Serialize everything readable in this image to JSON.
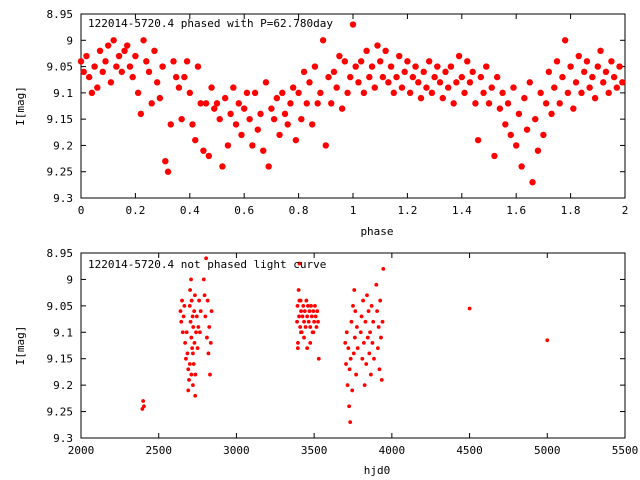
{
  "chart_data": [
    {
      "type": "scatter",
      "title": "122014-5720.4 phased with P=62.780day",
      "xlabel": "phase",
      "ylabel": "I[mag]",
      "xlim": [
        0,
        2
      ],
      "ylim": [
        9.3,
        8.95
      ],
      "y_inverted": true,
      "grid": false,
      "legend": "none",
      "marker": "filled-circle-large",
      "color": "#ff0000",
      "x_ticks": [
        "0",
        "0.2",
        "0.4",
        "0.6",
        "0.8",
        "1",
        "1.2",
        "1.4",
        "1.6",
        "1.8",
        "2"
      ],
      "x_tick_values": [
        0,
        0.2,
        0.4,
        0.6,
        0.8,
        1,
        1.2,
        1.4,
        1.6,
        1.8,
        2
      ],
      "y_ticks": [
        "8.95",
        "9",
        "9.05",
        "9.1",
        "9.15",
        "9.2",
        "9.25",
        "9.3"
      ],
      "y_tick_values": [
        8.95,
        9.0,
        9.05,
        9.1,
        9.15,
        9.2,
        9.25,
        9.3
      ],
      "points": [
        [
          0.0,
          9.04
        ],
        [
          0.01,
          9.06
        ],
        [
          0.02,
          9.03
        ],
        [
          0.03,
          9.07
        ],
        [
          0.04,
          9.1
        ],
        [
          0.05,
          9.05
        ],
        [
          0.06,
          9.09
        ],
        [
          0.07,
          9.02
        ],
        [
          0.08,
          9.06
        ],
        [
          0.09,
          9.04
        ],
        [
          0.1,
          9.01
        ],
        [
          0.11,
          9.08
        ],
        [
          0.12,
          9.0
        ],
        [
          0.13,
          9.05
        ],
        [
          0.14,
          9.03
        ],
        [
          0.15,
          9.06
        ],
        [
          0.16,
          9.02
        ],
        [
          0.17,
          9.01
        ],
        [
          0.18,
          9.05
        ],
        [
          0.19,
          9.07
        ],
        [
          0.2,
          9.03
        ],
        [
          0.21,
          9.1
        ],
        [
          0.22,
          9.14
        ],
        [
          0.23,
          9.0
        ],
        [
          0.24,
          9.04
        ],
        [
          0.25,
          9.06
        ],
        [
          0.26,
          9.12
        ],
        [
          0.27,
          9.02
        ],
        [
          0.28,
          9.08
        ],
        [
          0.29,
          9.11
        ],
        [
          0.3,
          9.05
        ],
        [
          0.31,
          9.23
        ],
        [
          0.32,
          9.25
        ],
        [
          0.33,
          9.16
        ],
        [
          0.34,
          9.04
        ],
        [
          0.35,
          9.07
        ],
        [
          0.36,
          9.09
        ],
        [
          0.37,
          9.15
        ],
        [
          0.38,
          9.07
        ],
        [
          0.39,
          9.04
        ],
        [
          0.4,
          9.1
        ],
        [
          0.41,
          9.16
        ],
        [
          0.42,
          9.19
        ],
        [
          0.43,
          9.05
        ],
        [
          0.44,
          9.12
        ],
        [
          0.45,
          9.21
        ],
        [
          0.46,
          9.12
        ],
        [
          0.47,
          9.22
        ],
        [
          0.48,
          9.09
        ],
        [
          0.49,
          9.13
        ],
        [
          0.5,
          9.12
        ],
        [
          0.51,
          9.15
        ],
        [
          0.52,
          9.24
        ],
        [
          0.53,
          9.11
        ],
        [
          0.54,
          9.2
        ],
        [
          0.55,
          9.14
        ],
        [
          0.56,
          9.09
        ],
        [
          0.57,
          9.16
        ],
        [
          0.58,
          9.12
        ],
        [
          0.59,
          9.18
        ],
        [
          0.6,
          9.13
        ],
        [
          0.61,
          9.1
        ],
        [
          0.62,
          9.15
        ],
        [
          0.63,
          9.2
        ],
        [
          0.64,
          9.1
        ],
        [
          0.65,
          9.17
        ],
        [
          0.66,
          9.14
        ],
        [
          0.67,
          9.21
        ],
        [
          0.68,
          9.08
        ],
        [
          0.69,
          9.24
        ],
        [
          0.7,
          9.13
        ],
        [
          0.71,
          9.15
        ],
        [
          0.72,
          9.11
        ],
        [
          0.73,
          9.18
        ],
        [
          0.74,
          9.1
        ],
        [
          0.75,
          9.14
        ],
        [
          0.76,
          9.16
        ],
        [
          0.77,
          9.12
        ],
        [
          0.78,
          9.09
        ],
        [
          0.79,
          9.19
        ],
        [
          0.8,
          9.1
        ],
        [
          0.81,
          9.15
        ],
        [
          0.82,
          9.06
        ],
        [
          0.83,
          9.12
        ],
        [
          0.84,
          9.08
        ],
        [
          0.85,
          9.16
        ],
        [
          0.86,
          9.05
        ],
        [
          0.87,
          9.12
        ],
        [
          0.88,
          9.1
        ],
        [
          0.89,
          9.0
        ],
        [
          0.9,
          9.2
        ],
        [
          0.91,
          9.07
        ],
        [
          0.92,
          9.12
        ],
        [
          0.93,
          9.06
        ],
        [
          0.94,
          9.09
        ],
        [
          0.95,
          9.03
        ],
        [
          0.96,
          9.13
        ],
        [
          0.97,
          9.04
        ],
        [
          0.98,
          9.1
        ],
        [
          0.99,
          9.07
        ],
        [
          1.0,
          8.97
        ],
        [
          1.01,
          9.05
        ],
        [
          1.02,
          9.08
        ],
        [
          1.03,
          9.04
        ],
        [
          1.04,
          9.1
        ],
        [
          1.05,
          9.02
        ],
        [
          1.06,
          9.07
        ],
        [
          1.07,
          9.05
        ],
        [
          1.08,
          9.09
        ],
        [
          1.09,
          9.01
        ],
        [
          1.1,
          9.04
        ],
        [
          1.11,
          9.07
        ],
        [
          1.12,
          9.02
        ],
        [
          1.13,
          9.08
        ],
        [
          1.14,
          9.05
        ],
        [
          1.15,
          9.1
        ],
        [
          1.16,
          9.07
        ],
        [
          1.17,
          9.03
        ],
        [
          1.18,
          9.09
        ],
        [
          1.19,
          9.06
        ],
        [
          1.2,
          9.04
        ],
        [
          1.21,
          9.1
        ],
        [
          1.22,
          9.07
        ],
        [
          1.23,
          9.05
        ],
        [
          1.24,
          9.08
        ],
        [
          1.25,
          9.11
        ],
        [
          1.26,
          9.06
        ],
        [
          1.27,
          9.09
        ],
        [
          1.28,
          9.04
        ],
        [
          1.29,
          9.1
        ],
        [
          1.3,
          9.07
        ],
        [
          1.31,
          9.05
        ],
        [
          1.32,
          9.08
        ],
        [
          1.33,
          9.11
        ],
        [
          1.34,
          9.06
        ],
        [
          1.35,
          9.09
        ],
        [
          1.36,
          9.05
        ],
        [
          1.37,
          9.12
        ],
        [
          1.38,
          9.08
        ],
        [
          1.39,
          9.03
        ],
        [
          1.4,
          9.07
        ],
        [
          1.41,
          9.1
        ],
        [
          1.42,
          9.04
        ],
        [
          1.43,
          9.08
        ],
        [
          1.44,
          9.06
        ],
        [
          1.45,
          9.12
        ],
        [
          1.46,
          9.19
        ],
        [
          1.47,
          9.07
        ],
        [
          1.48,
          9.1
        ],
        [
          1.49,
          9.05
        ],
        [
          1.5,
          9.12
        ],
        [
          1.51,
          9.09
        ],
        [
          1.52,
          9.22
        ],
        [
          1.53,
          9.07
        ],
        [
          1.54,
          9.13
        ],
        [
          1.55,
          9.1
        ],
        [
          1.56,
          9.16
        ],
        [
          1.57,
          9.12
        ],
        [
          1.58,
          9.18
        ],
        [
          1.59,
          9.09
        ],
        [
          1.6,
          9.2
        ],
        [
          1.61,
          9.14
        ],
        [
          1.62,
          9.24
        ],
        [
          1.63,
          9.11
        ],
        [
          1.64,
          9.17
        ],
        [
          1.65,
          9.08
        ],
        [
          1.66,
          9.27
        ],
        [
          1.67,
          9.15
        ],
        [
          1.68,
          9.21
        ],
        [
          1.69,
          9.1
        ],
        [
          1.7,
          9.18
        ],
        [
          1.71,
          9.12
        ],
        [
          1.72,
          9.06
        ],
        [
          1.73,
          9.14
        ],
        [
          1.74,
          9.09
        ],
        [
          1.75,
          9.04
        ],
        [
          1.76,
          9.12
        ],
        [
          1.77,
          9.07
        ],
        [
          1.78,
          9.0
        ],
        [
          1.79,
          9.1
        ],
        [
          1.8,
          9.05
        ],
        [
          1.81,
          9.13
        ],
        [
          1.82,
          9.08
        ],
        [
          1.83,
          9.03
        ],
        [
          1.84,
          9.1
        ],
        [
          1.85,
          9.06
        ],
        [
          1.86,
          9.04
        ],
        [
          1.87,
          9.09
        ],
        [
          1.88,
          9.07
        ],
        [
          1.89,
          9.11
        ],
        [
          1.9,
          9.05
        ],
        [
          1.91,
          9.02
        ],
        [
          1.92,
          9.08
        ],
        [
          1.93,
          9.06
        ],
        [
          1.94,
          9.1
        ],
        [
          1.95,
          9.04
        ],
        [
          1.96,
          9.07
        ],
        [
          1.97,
          9.09
        ],
        [
          1.98,
          9.05
        ],
        [
          1.99,
          9.08
        ]
      ]
    },
    {
      "type": "scatter",
      "title": "122014-5720.4 not phased light curve",
      "xlabel": "hjd0",
      "ylabel": "I[mag]",
      "xlim": [
        2000,
        5500
      ],
      "ylim": [
        9.3,
        8.95
      ],
      "y_inverted": true,
      "grid": false,
      "legend": "none",
      "marker": "small-dot",
      "color": "#ff0000",
      "x_ticks": [
        "2000",
        "2500",
        "3000",
        "3500",
        "4000",
        "4500",
        "5000",
        "5500"
      ],
      "x_tick_values": [
        2000,
        2500,
        3000,
        3500,
        4000,
        4500,
        5000,
        5500
      ],
      "y_ticks": [
        "8.95",
        "9",
        "9.05",
        "9.1",
        "9.15",
        "9.2",
        "9.25",
        "9.3"
      ],
      "y_tick_values": [
        8.95,
        9.0,
        9.05,
        9.1,
        9.15,
        9.2,
        9.25,
        9.3
      ],
      "points": [
        [
          2395,
          9.245
        ],
        [
          2400,
          9.23
        ],
        [
          2405,
          9.24
        ],
        [
          2640,
          9.06
        ],
        [
          2645,
          9.08
        ],
        [
          2650,
          9.04
        ],
        [
          2655,
          9.1
        ],
        [
          2660,
          9.07
        ],
        [
          2665,
          9.05
        ],
        [
          2670,
          9.12
        ],
        [
          2675,
          9.15
        ],
        [
          2680,
          9.1
        ],
        [
          2685,
          9.14
        ],
        [
          2690,
          9.17
        ],
        [
          2695,
          9.19
        ],
        [
          2700,
          9.05
        ],
        [
          2702,
          9.02
        ],
        [
          2705,
          9.08
        ],
        [
          2708,
          9.0
        ],
        [
          2710,
          9.11
        ],
        [
          2712,
          9.04
        ],
        [
          2715,
          9.13
        ],
        [
          2718,
          9.07
        ],
        [
          2720,
          9.2
        ],
        [
          2722,
          9.09
        ],
        [
          2725,
          9.16
        ],
        [
          2728,
          9.06
        ],
        [
          2730,
          9.12
        ],
        [
          2733,
          9.03
        ],
        [
          2736,
          9.18
        ],
        [
          2740,
          9.1
        ],
        [
          2745,
          9.07
        ],
        [
          2750,
          9.13
        ],
        [
          2755,
          9.09
        ],
        [
          2760,
          9.04
        ],
        [
          2765,
          9.1
        ],
        [
          2770,
          9.06
        ],
        [
          2690,
          9.21
        ],
        [
          2700,
          9.16
        ],
        [
          2710,
          9.18
        ],
        [
          2720,
          9.14
        ],
        [
          2735,
          9.22
        ],
        [
          2790,
          9.0
        ],
        [
          2795,
          9.03
        ],
        [
          2800,
          9.07
        ],
        [
          2805,
          8.96
        ],
        [
          2810,
          9.11
        ],
        [
          2815,
          9.04
        ],
        [
          2820,
          9.14
        ],
        [
          2825,
          9.09
        ],
        [
          2830,
          9.18
        ],
        [
          2835,
          9.12
        ],
        [
          2840,
          9.06
        ],
        [
          3390,
          9.08
        ],
        [
          3393,
          9.05
        ],
        [
          3396,
          9.12
        ],
        [
          3400,
          9.02
        ],
        [
          3403,
          9.07
        ],
        [
          3406,
          8.97
        ],
        [
          3410,
          9.09
        ],
        [
          3413,
          9.04
        ],
        [
          3416,
          9.06
        ],
        [
          3420,
          9.1
        ],
        [
          3425,
          9.07
        ],
        [
          3430,
          9.05
        ],
        [
          3435,
          9.08
        ],
        [
          3440,
          9.06
        ],
        [
          3445,
          9.09
        ],
        [
          3450,
          9.04
        ],
        [
          3455,
          9.07
        ],
        [
          3460,
          9.05
        ],
        [
          3465,
          9.08
        ],
        [
          3470,
          9.06
        ],
        [
          3475,
          9.09
        ],
        [
          3480,
          9.05
        ],
        [
          3485,
          9.07
        ],
        [
          3490,
          9.1
        ],
        [
          3495,
          9.06
        ],
        [
          3500,
          9.08
        ],
        [
          3505,
          9.05
        ],
        [
          3510,
          9.07
        ],
        [
          3515,
          9.09
        ],
        [
          3520,
          9.06
        ],
        [
          3525,
          9.08
        ],
        [
          3530,
          9.15
        ],
        [
          3395,
          9.13
        ],
        [
          3405,
          9.04
        ],
        [
          3415,
          9.1
        ],
        [
          3435,
          9.11
        ],
        [
          3455,
          9.13
        ],
        [
          3475,
          9.12
        ],
        [
          3495,
          9.1
        ],
        [
          3700,
          9.12
        ],
        [
          3705,
          9.16
        ],
        [
          3710,
          9.1
        ],
        [
          3715,
          9.2
        ],
        [
          3720,
          9.13
        ],
        [
          3725,
          9.24
        ],
        [
          3728,
          9.17
        ],
        [
          3732,
          9.27
        ],
        [
          3735,
          9.15
        ],
        [
          3740,
          9.08
        ],
        [
          3745,
          9.21
        ],
        [
          3750,
          9.05
        ],
        [
          3755,
          9.14
        ],
        [
          3758,
          9.02
        ],
        [
          3762,
          9.11
        ],
        [
          3765,
          9.06
        ],
        [
          3770,
          9.18
        ],
        [
          3775,
          9.09
        ],
        [
          3780,
          9.13
        ],
        [
          3800,
          9.1
        ],
        [
          3805,
          9.07
        ],
        [
          3810,
          9.15
        ],
        [
          3815,
          9.04
        ],
        [
          3820,
          9.12
        ],
        [
          3825,
          9.2
        ],
        [
          3830,
          9.08
        ],
        [
          3835,
          9.16
        ],
        [
          3840,
          9.03
        ],
        [
          3845,
          9.11
        ],
        [
          3850,
          9.06
        ],
        [
          3855,
          9.14
        ],
        [
          3860,
          9.1
        ],
        [
          3865,
          9.18
        ],
        [
          3870,
          9.05
        ],
        [
          3875,
          9.12
        ],
        [
          3880,
          9.08
        ],
        [
          3885,
          9.15
        ],
        [
          3900,
          9.01
        ],
        [
          3905,
          9.06
        ],
        [
          3910,
          9.13
        ],
        [
          3915,
          9.09
        ],
        [
          3920,
          9.17
        ],
        [
          3925,
          9.04
        ],
        [
          3930,
          9.11
        ],
        [
          3935,
          9.19
        ],
        [
          3940,
          9.08
        ],
        [
          3945,
          8.98
        ],
        [
          4500,
          9.055
        ],
        [
          5000,
          9.115
        ]
      ]
    }
  ]
}
